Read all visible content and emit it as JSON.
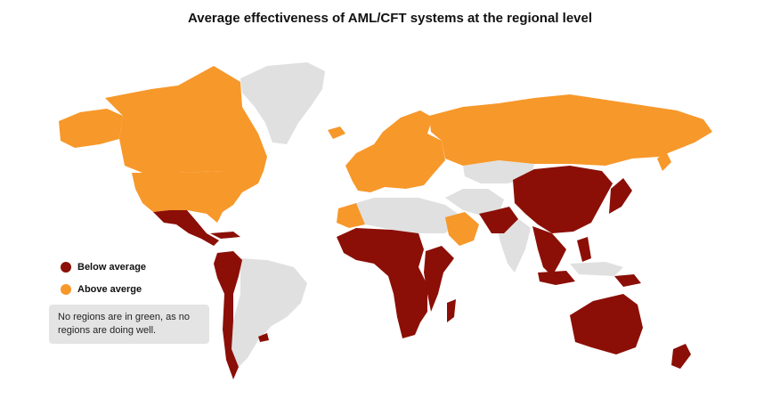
{
  "title": "Average effectiveness of AML/CFT systems at the regional level",
  "colors": {
    "below_average": "#8b0f07",
    "above_average": "#f7982a",
    "no_data": "#e0e0e0"
  },
  "legend": [
    {
      "label": "Below average",
      "color": "#8b0f07"
    },
    {
      "label": "Above averge",
      "color": "#f7982a"
    }
  ],
  "note": "No regions are in green, as no regions are doing well.",
  "regions": {
    "above_average": [
      "North America",
      "Europe",
      "Russia and Central Asia",
      "Arabian Peninsula",
      "Northwest Africa"
    ],
    "below_average": [
      "Mexico and Central America",
      "Western South America",
      "West and Central Africa",
      "East Africa",
      "Southern Africa",
      "Madagascar",
      "China and Mongolia",
      "South Asia",
      "Southeast Asia",
      "Japan",
      "Australia",
      "New Zealand"
    ]
  }
}
